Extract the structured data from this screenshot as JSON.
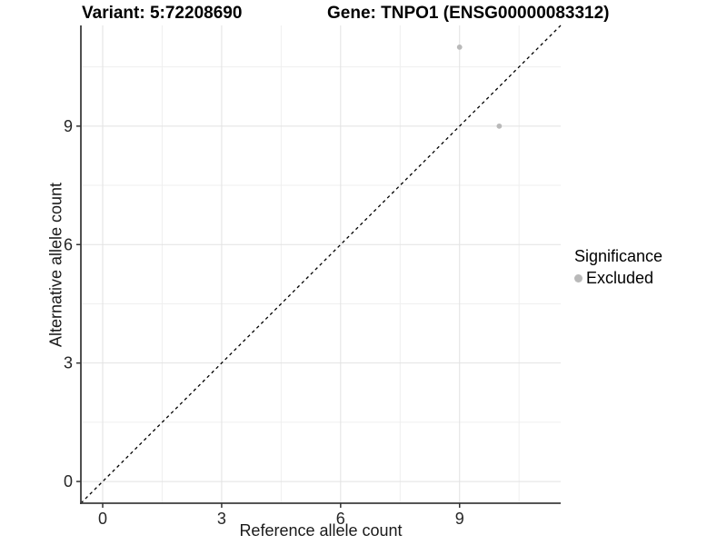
{
  "chart_data": {
    "type": "scatter",
    "title_left": "Variant: 5:72208690",
    "title_right": "Gene: TNPO1 (ENSG00000083312)",
    "xlabel": "Reference allele count",
    "ylabel": "Alternative allele count",
    "xlim": [
      -0.55,
      11.55
    ],
    "ylim": [
      -0.55,
      11.55
    ],
    "x_major_ticks": [
      0,
      3,
      6,
      9
    ],
    "y_major_ticks": [
      0,
      3,
      6,
      9
    ],
    "x_minor_ticks": [
      1.5,
      4.5,
      7.5,
      10.5
    ],
    "y_minor_ticks": [
      1.5,
      4.5,
      7.5,
      10.5
    ],
    "grid": true,
    "reference_line": {
      "type": "identity",
      "style": "dashed",
      "color": "#000000"
    },
    "series": [
      {
        "name": "Excluded",
        "color": "#b9b9b9",
        "points": [
          {
            "x": 9,
            "y": 11
          },
          {
            "x": 10,
            "y": 9
          }
        ]
      }
    ],
    "legend": {
      "title": "Significance",
      "position": "right",
      "items": [
        {
          "label": "Excluded",
          "color": "#b9b9b9"
        }
      ]
    },
    "colors": {
      "grid_major": "#e2e2e2",
      "grid_minor": "#efefef",
      "axis": "#3d3d3d",
      "tick": "#333333",
      "text": "#262626",
      "background": "#ffffff"
    }
  }
}
